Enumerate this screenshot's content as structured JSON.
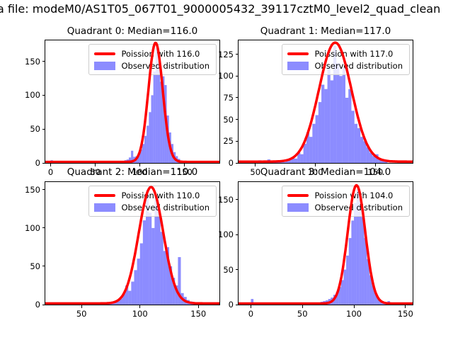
{
  "figure": {
    "suptitle": "a file: modeM0/AS1T05_067T01_9000005432_39117cztM0_level2_quad_clean",
    "background": "#ffffff"
  },
  "colors": {
    "curve": "#ff0000",
    "bars": "rgba(0,0,255,0.45)",
    "axes_border": "#000000",
    "legend_border": "#cccccc"
  },
  "chart_data": [
    {
      "type": "bar",
      "subtype": "histogram-with-fit-line",
      "title": "Quadrant 0: Median=116.0",
      "median": 116.0,
      "legend": [
        "Poission with 116.0",
        "Observed distribution"
      ],
      "legend_position": "upper right",
      "xlim": [
        -6,
        189
      ],
      "ylim": [
        0,
        181
      ],
      "xticks": [
        0,
        50,
        100,
        150
      ],
      "yticks": [
        0,
        50,
        100,
        150
      ],
      "bins": {
        "start": 0,
        "width": 2.5,
        "heights": [
          4,
          1,
          1,
          0,
          1,
          0,
          1,
          1,
          0,
          1,
          1,
          0,
          1,
          1,
          0,
          1,
          1,
          1,
          0,
          1,
          1,
          1,
          2,
          1,
          1,
          2,
          1,
          2,
          2,
          2,
          2,
          3,
          3,
          4,
          5,
          8,
          18,
          9,
          10,
          14,
          20,
          28,
          40,
          55,
          75,
          100,
          135,
          170,
          150,
          120,
          128,
          115,
          70,
          45,
          28,
          16,
          10,
          6,
          3,
          2,
          1,
          1,
          0,
          0
        ]
      },
      "curve": {
        "shape": "gaussian",
        "mu": 117.5,
        "sigma": 8.0,
        "amp": 176,
        "base": 1.5
      }
    },
    {
      "type": "bar",
      "subtype": "histogram-with-fit-line",
      "title": "Quadrant 1: Median=117.0",
      "median": 117.0,
      "legend": [
        "Poission with 117.0",
        "Observed distribution"
      ],
      "legend_position": "upper right",
      "xlim": [
        36,
        181
      ],
      "ylim": [
        0,
        141
      ],
      "xticks": [
        50,
        100,
        150
      ],
      "yticks": [
        0,
        25,
        50,
        75,
        100,
        125
      ],
      "bins": {
        "start": 45,
        "width": 2.5,
        "heights": [
          1,
          0,
          2,
          3,
          2,
          1,
          4,
          2,
          1,
          2,
          2,
          1,
          3,
          4,
          6,
          5,
          12,
          10,
          22,
          35,
          30,
          45,
          55,
          70,
          90,
          85,
          110,
          95,
          135,
          115,
          100,
          110,
          75,
          85,
          60,
          45,
          40,
          30,
          25,
          18,
          12,
          8,
          10,
          5,
          3,
          2
        ]
      },
      "curve": {
        "shape": "gaussian",
        "mu": 116.5,
        "sigma": 13.5,
        "amp": 137,
        "base": 1.5
      }
    },
    {
      "type": "bar",
      "subtype": "histogram-with-fit-line",
      "title": "Quadrant 2: Median=110.0",
      "median": 110.0,
      "legend": [
        "Poission with 110.0",
        "Observed distribution"
      ],
      "legend_position": "upper right",
      "xlim": [
        19,
        168
      ],
      "ylim": [
        0,
        160
      ],
      "xticks": [
        50,
        100,
        150
      ],
      "yticks": [
        0,
        50,
        100,
        150
      ],
      "bins": {
        "start": 37.5,
        "width": 2.5,
        "heights": [
          1,
          0,
          1,
          0,
          1,
          1,
          0,
          1,
          1,
          1,
          1,
          2,
          2,
          3,
          2,
          3,
          4,
          6,
          8,
          14,
          25,
          18,
          30,
          45,
          60,
          80,
          110,
          150,
          120,
          100,
          140,
          125,
          95,
          70,
          75,
          50,
          35,
          25,
          62,
          15,
          10,
          6,
          4,
          3,
          2,
          1,
          1,
          0
        ]
      },
      "curve": {
        "shape": "gaussian",
        "mu": 109.5,
        "sigma": 10.5,
        "amp": 152,
        "base": 1.5
      }
    },
    {
      "type": "bar",
      "subtype": "histogram-with-fit-line",
      "title": "Quadrant 3: Median=104.0",
      "median": 104.0,
      "legend": [
        "Poission with 104.0",
        "Observed distribution"
      ],
      "legend_position": "upper right",
      "xlim": [
        -12,
        157
      ],
      "ylim": [
        0,
        175
      ],
      "xticks": [
        0,
        50,
        100,
        150
      ],
      "yticks": [
        0,
        50,
        100,
        150
      ],
      "bins": {
        "start": 0,
        "width": 2.5,
        "heights": [
          8,
          1,
          0,
          1,
          0,
          1,
          0,
          0,
          1,
          0,
          1,
          0,
          1,
          0,
          1,
          1,
          0,
          1,
          1,
          1,
          1,
          1,
          2,
          1,
          2,
          3,
          3,
          4,
          5,
          6,
          8,
          10,
          14,
          18,
          25,
          35,
          50,
          70,
          95,
          120,
          145,
          165,
          150,
          125,
          95,
          65,
          42,
          28,
          16,
          10,
          6,
          4,
          3,
          5,
          2,
          1,
          1,
          0,
          1
        ]
      },
      "curve": {
        "shape": "gaussian",
        "mu": 102.5,
        "sigma": 8.5,
        "amp": 169,
        "base": 1.5
      }
    }
  ]
}
